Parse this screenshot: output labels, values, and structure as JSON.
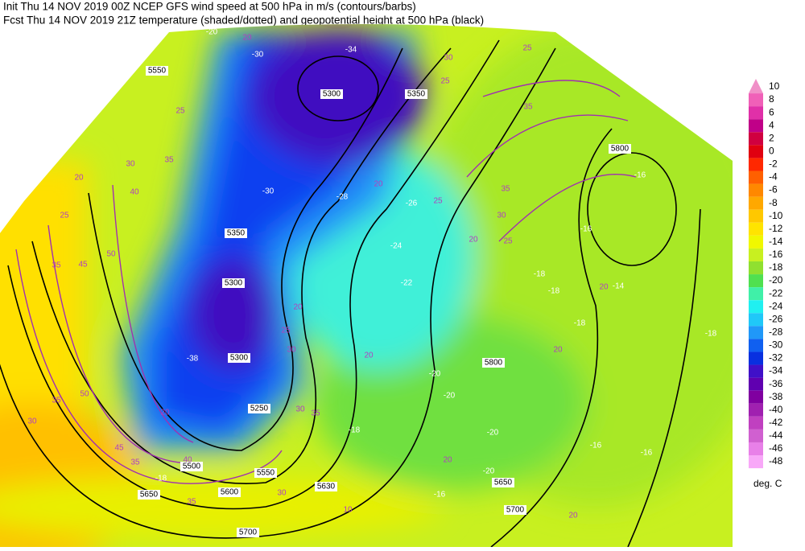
{
  "header": {
    "line1": "Init  Thu 14 NOV 2019 00Z   NCEP GFS wind speed at 500 hPa in m/s (contours/barbs)",
    "line2": "Fcst Thu 14 NOV 2019 21Z   temperature (shaded/dotted) and geopotential height at 500 hPa (black)"
  },
  "colorbar": {
    "levels": [
      10,
      8,
      6,
      4,
      2,
      0,
      -2,
      -4,
      -6,
      -8,
      -10,
      -12,
      -14,
      -16,
      -18,
      -20,
      -22,
      -24,
      -26,
      -28,
      -30,
      -32,
      -34,
      -36,
      -38,
      -40,
      -42,
      -44,
      -46,
      -48
    ],
    "colors": [
      "#f090c8",
      "#f060b8",
      "#e030a8",
      "#c00088",
      "#d00040",
      "#e00010",
      "#ff2800",
      "#ff6000",
      "#ff8800",
      "#ffa800",
      "#ffc800",
      "#ffe400",
      "#f0f800",
      "#c8f020",
      "#90e030",
      "#50e050",
      "#40f0a8",
      "#20f0f0",
      "#20c8f8",
      "#2098f8",
      "#1060f0",
      "#0830e0",
      "#4010c8",
      "#6000b0",
      "#8000a0",
      "#a020b0",
      "#c040c0",
      "#d060d0",
      "#e880e8",
      "#f8a8f8"
    ],
    "unit": "deg. C"
  },
  "map_labels": {
    "heights": [
      5550,
      5300,
      5350,
      5350,
      5300,
      5300,
      5250,
      5500,
      5550,
      5600,
      5650,
      5800,
      5800,
      5650,
      5700,
      5700,
      5630
    ],
    "wind": [
      20,
      25,
      30,
      35,
      40,
      45,
      50,
      35,
      25,
      20,
      30,
      35,
      50,
      45,
      35,
      40,
      30,
      35,
      20,
      20,
      25,
      30,
      30,
      35,
      20,
      20,
      25,
      20,
      25,
      30,
      35,
      25,
      30,
      25,
      35,
      20,
      20,
      20,
      20,
      10
    ],
    "temperature": [
      -20,
      -30,
      -34,
      -30,
      -28,
      -26,
      -24,
      -22,
      -16,
      -16,
      -18,
      -18,
      -14,
      -18,
      -18,
      -20,
      -20,
      -18,
      -20,
      -16,
      -16,
      -20,
      -16,
      -18,
      -38
    ]
  }
}
